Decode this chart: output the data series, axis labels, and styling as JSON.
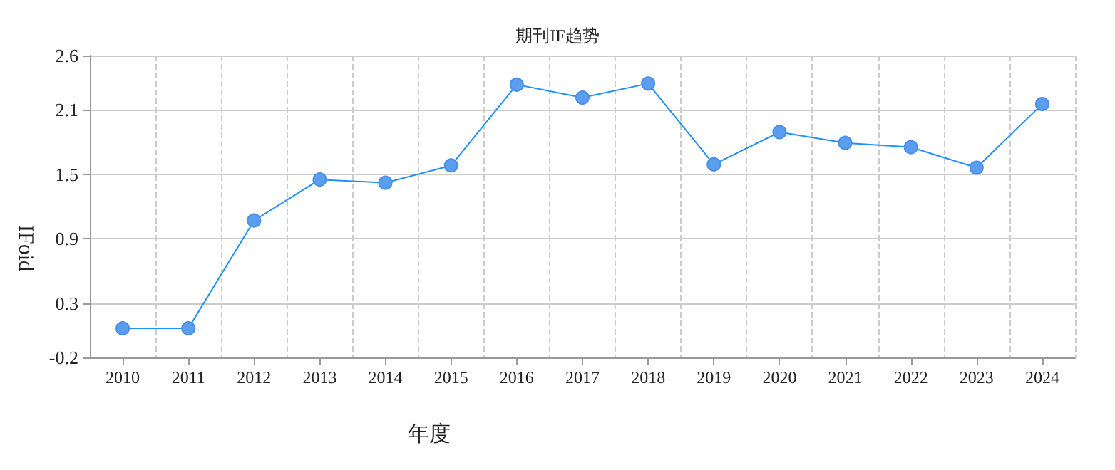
{
  "chart_data": {
    "type": "line",
    "title": "期刊IF趋势",
    "xlabel": "年度",
    "ylabel": "IFoid",
    "categories": [
      "2010",
      "2011",
      "2012",
      "2013",
      "2014",
      "2015",
      "2016",
      "2017",
      "2018",
      "2019",
      "2020",
      "2021",
      "2022",
      "2023",
      "2024"
    ],
    "series": [
      {
        "color": "#1e90ff",
        "values": [
          0.07,
          0.07,
          1.07,
          1.45,
          1.42,
          1.58,
          2.33,
          2.21,
          2.34,
          1.59,
          1.89,
          1.79,
          1.75,
          1.56,
          2.15
        ]
      }
    ],
    "ylim": [
      -0.2,
      2.6
    ],
    "yticks": [
      -0.2,
      0.3,
      0.9,
      1.5,
      2.1,
      2.6
    ],
    "grid": true,
    "marker": "circle",
    "line_style": "solid"
  }
}
